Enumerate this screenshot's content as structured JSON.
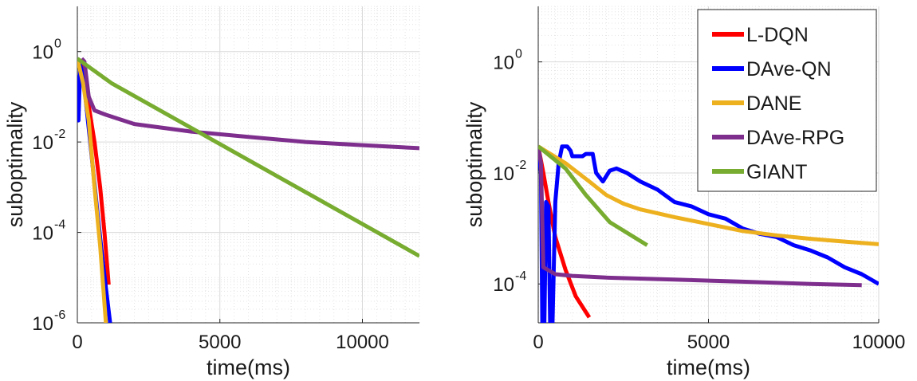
{
  "chart_data": [
    {
      "type": "line",
      "xlabel": "time(ms)",
      "ylabel": "suboptimality",
      "xlim": [
        0,
        12000
      ],
      "ylim_log10": [
        -6,
        1
      ],
      "yscale": "log",
      "grid": "major and minor, light gray dotted",
      "x_ticks": [
        {
          "v": 0,
          "label": "0"
        },
        {
          "v": 5000,
          "label": "5000"
        },
        {
          "v": 10000,
          "label": "10000"
        }
      ],
      "y_ticks": [
        {
          "exp": -6,
          "base": "10",
          "exp_label": "-6"
        },
        {
          "exp": -4,
          "base": "10",
          "exp_label": "-4"
        },
        {
          "exp": -2,
          "base": "10",
          "exp_label": "-2"
        },
        {
          "exp": 0,
          "base": "10",
          "exp_label": "0"
        }
      ],
      "legend": null,
      "series": [
        {
          "color": "#ff0000",
          "points": [
            [
              0,
              0.7
            ],
            [
              150,
              0.5
            ],
            [
              350,
              0.1
            ],
            [
              600,
              0.01
            ],
            [
              800,
              0.001
            ],
            [
              950,
              0.0001
            ],
            [
              1100,
              7e-06
            ]
          ]
        },
        {
          "color": "#0000ff",
          "points": [
            [
              0,
              0.3
            ],
            [
              40,
              0.03
            ],
            [
              100,
              0.5
            ],
            [
              200,
              0.3
            ],
            [
              450,
              0.01
            ],
            [
              700,
              0.0003
            ],
            [
              900,
              2e-05
            ],
            [
              1150,
              1e-06
            ]
          ]
        },
        {
          "color": "#edb120",
          "points": [
            [
              0,
              0.7
            ],
            [
              200,
              0.2
            ],
            [
              400,
              0.03
            ],
            [
              600,
              0.001
            ],
            [
              800,
              5e-05
            ],
            [
              1000,
              1e-06
            ]
          ]
        },
        {
          "color": "#7e2f8e",
          "points": [
            [
              150,
              0.7
            ],
            [
              250,
              0.6
            ],
            [
              400,
              0.1
            ],
            [
              600,
              0.05
            ],
            [
              1000,
              0.04
            ],
            [
              2000,
              0.025
            ],
            [
              4000,
              0.017
            ],
            [
              6000,
              0.013
            ],
            [
              8000,
              0.01
            ],
            [
              10000,
              0.0085
            ],
            [
              12000,
              0.0073
            ]
          ]
        },
        {
          "color": "#77ac30",
          "points": [
            [
              0,
              0.7
            ],
            [
              1200,
              0.2
            ],
            [
              12000,
              3e-05
            ]
          ]
        }
      ]
    },
    {
      "type": "line",
      "xlabel": "time(ms)",
      "ylabel": "suboptimality",
      "xlim": [
        0,
        10000
      ],
      "ylim_log10": [
        -4.7,
        1
      ],
      "yscale": "log",
      "grid": "major and minor, light gray dotted",
      "x_ticks": [
        {
          "v": 0,
          "label": "0"
        },
        {
          "v": 5000,
          "label": "5000"
        },
        {
          "v": 10000,
          "label": "10000"
        }
      ],
      "y_ticks": [
        {
          "exp": -4,
          "base": "10",
          "exp_label": "-4"
        },
        {
          "exp": -2,
          "base": "10",
          "exp_label": "-2"
        },
        {
          "exp": 0,
          "base": "10",
          "exp_label": "0"
        }
      ],
      "legend": {
        "placement": "top-right"
      },
      "series": [
        {
          "name": "L-DQN",
          "color": "#ff0000",
          "points": [
            [
              0,
              0.03
            ],
            [
              150,
              0.01
            ],
            [
              300,
              0.003
            ],
            [
              500,
              0.0007
            ],
            [
              800,
              0.00018
            ],
            [
              1100,
              6e-05
            ],
            [
              1500,
              2.5e-05
            ]
          ]
        },
        {
          "name": "DAve-QN",
          "color": "#0000ff",
          "points": [
            [
              0,
              0.03
            ],
            [
              80,
              0.01
            ],
            [
              120,
              2e-05
            ],
            [
              180,
              2e-05
            ],
            [
              230,
              0.003
            ],
            [
              300,
              0.0025
            ],
            [
              350,
              2e-05
            ],
            [
              420,
              2e-05
            ],
            [
              500,
              0.003
            ],
            [
              600,
              0.015
            ],
            [
              700,
              0.03
            ],
            [
              850,
              0.03
            ],
            [
              950,
              0.025
            ],
            [
              1000,
              0.02
            ],
            [
              1300,
              0.02
            ],
            [
              1400,
              0.022
            ],
            [
              1600,
              0.022
            ],
            [
              1700,
              0.01
            ],
            [
              1900,
              0.007
            ],
            [
              2100,
              0.011
            ],
            [
              2300,
              0.012
            ],
            [
              2600,
              0.01
            ],
            [
              3000,
              0.007
            ],
            [
              3500,
              0.005
            ],
            [
              4000,
              0.003
            ],
            [
              4500,
              0.0025
            ],
            [
              5000,
              0.0018
            ],
            [
              5500,
              0.0015
            ],
            [
              6000,
              0.001
            ],
            [
              6500,
              0.0008
            ],
            [
              7000,
              0.0007
            ],
            [
              7500,
              0.0005
            ],
            [
              8000,
              0.0004
            ],
            [
              8500,
              0.0003
            ],
            [
              9000,
              0.0002
            ],
            [
              9500,
              0.00015
            ],
            [
              10000,
              0.0001
            ]
          ]
        },
        {
          "name": "DANE",
          "color": "#edb120",
          "points": [
            [
              0,
              0.03
            ],
            [
              800,
              0.015
            ],
            [
              1500,
              0.007
            ],
            [
              2000,
              0.004
            ],
            [
              2500,
              0.0028
            ],
            [
              3000,
              0.0022
            ],
            [
              4000,
              0.0016
            ],
            [
              5000,
              0.0012
            ],
            [
              6000,
              0.0009
            ],
            [
              7000,
              0.00075
            ],
            [
              8000,
              0.00065
            ],
            [
              9000,
              0.00058
            ],
            [
              10000,
              0.00052
            ]
          ]
        },
        {
          "name": "DAve-RPG",
          "color": "#7e2f8e",
          "points": [
            [
              0,
              0.03
            ],
            [
              80,
              0.015
            ],
            [
              150,
              0.0002
            ],
            [
              500,
              0.00015
            ],
            [
              1000,
              0.00014
            ],
            [
              2000,
              0.00013
            ],
            [
              4000,
              0.00012
            ],
            [
              6000,
              0.00011
            ],
            [
              8000,
              0.0001
            ],
            [
              9500,
              9.5e-05
            ]
          ]
        },
        {
          "name": "GIANT",
          "color": "#77ac30",
          "points": [
            [
              0,
              0.03
            ],
            [
              800,
              0.012
            ],
            [
              1400,
              0.004
            ],
            [
              2100,
              0.0013
            ],
            [
              3200,
              0.0005
            ]
          ]
        }
      ]
    }
  ]
}
